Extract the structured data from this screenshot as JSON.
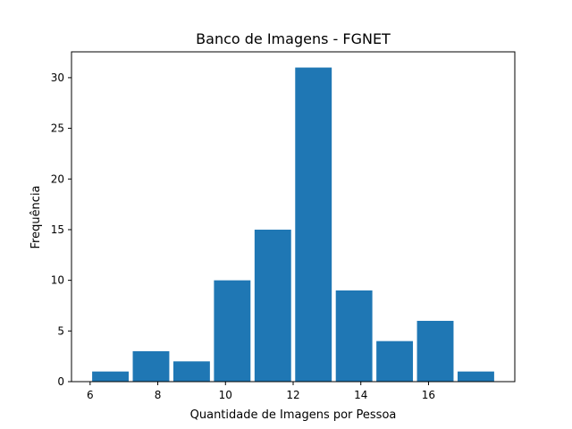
{
  "chart_data": {
    "type": "bar",
    "title": "Banco de Imagens - FGNET",
    "xlabel": "Quantidade de Imagens por Pessoa",
    "ylabel": "Frequência",
    "xlim": [
      5.45,
      18.55
    ],
    "ylim": [
      0,
      32.55
    ],
    "x_ticks": [
      6,
      8,
      10,
      12,
      14,
      16
    ],
    "y_ticks": [
      0,
      5,
      10,
      15,
      20,
      25,
      30
    ],
    "bins": [
      {
        "start": 6.0,
        "end": 7.2,
        "value": 1
      },
      {
        "start": 7.2,
        "end": 8.4,
        "value": 3
      },
      {
        "start": 8.4,
        "end": 9.6,
        "value": 2
      },
      {
        "start": 9.6,
        "end": 10.8,
        "value": 10
      },
      {
        "start": 10.8,
        "end": 12.0,
        "value": 15
      },
      {
        "start": 12.0,
        "end": 13.2,
        "value": 31
      },
      {
        "start": 13.2,
        "end": 14.4,
        "value": 9
      },
      {
        "start": 14.4,
        "end": 15.6,
        "value": 4
      },
      {
        "start": 15.6,
        "end": 16.8,
        "value": 6
      },
      {
        "start": 16.8,
        "end": 18.0,
        "value": 1
      }
    ],
    "bar_color": "#1f77b4",
    "grid": false,
    "legend": "none"
  }
}
